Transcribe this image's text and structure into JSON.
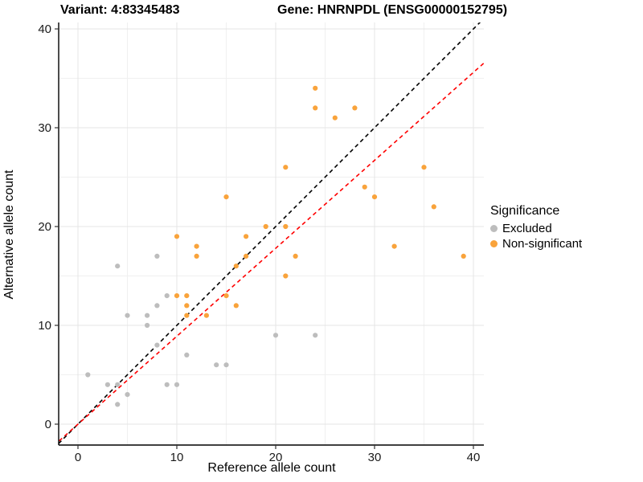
{
  "header": {
    "variant_title": "Variant: 4:83345483",
    "gene_title": "Gene: HNRNPDL (ENSG00000152795)"
  },
  "legend": {
    "title": "Significance",
    "items": [
      {
        "label": "Excluded",
        "color": "#BDBDBD"
      },
      {
        "label": "Non-significant",
        "color": "#F9A33B"
      }
    ]
  },
  "chart_data": {
    "type": "scatter",
    "title": "Variant: 4:83345483  /  Gene: HNRNPDL (ENSG00000152795)",
    "xlabel": "Reference allele count",
    "ylabel": "Alternative allele count",
    "xlim": [
      -2,
      41
    ],
    "ylim": [
      -2,
      41
    ],
    "x_ticks": [
      0,
      10,
      20,
      30,
      40
    ],
    "y_ticks": [
      0,
      10,
      20,
      30,
      40
    ],
    "minor_gridlines": [
      5,
      15,
      25,
      35
    ],
    "grid": true,
    "legend_position": "right",
    "legend_title": "Significance",
    "series": [
      {
        "name": "Excluded",
        "color": "#BDBDBD",
        "points": [
          [
            1,
            5
          ],
          [
            3,
            4
          ],
          [
            4,
            2
          ],
          [
            4,
            4
          ],
          [
            4,
            16
          ],
          [
            5,
            3
          ],
          [
            5,
            11
          ],
          [
            7,
            10
          ],
          [
            7,
            11
          ],
          [
            8,
            8
          ],
          [
            8,
            12
          ],
          [
            8,
            17
          ],
          [
            9,
            4
          ],
          [
            9,
            13
          ],
          [
            10,
            4
          ],
          [
            11,
            7
          ],
          [
            14,
            6
          ],
          [
            15,
            6
          ],
          [
            20,
            9
          ],
          [
            24,
            9
          ]
        ]
      },
      {
        "name": "Non-significant",
        "color": "#F9A33B",
        "points": [
          [
            10,
            13
          ],
          [
            10,
            19
          ],
          [
            11,
            11
          ],
          [
            11,
            12
          ],
          [
            11,
            13
          ],
          [
            12,
            17
          ],
          [
            12,
            18
          ],
          [
            13,
            11
          ],
          [
            15,
            13
          ],
          [
            15,
            23
          ],
          [
            16,
            12
          ],
          [
            16,
            16
          ],
          [
            17,
            17
          ],
          [
            17,
            19
          ],
          [
            19,
            20
          ],
          [
            21,
            15
          ],
          [
            21,
            20
          ],
          [
            21,
            26
          ],
          [
            22,
            17
          ],
          [
            24,
            32
          ],
          [
            24,
            34
          ],
          [
            26,
            31
          ],
          [
            28,
            32
          ],
          [
            29,
            24
          ],
          [
            30,
            23
          ],
          [
            32,
            18
          ],
          [
            35,
            26
          ],
          [
            36,
            22
          ],
          [
            39,
            17
          ]
        ]
      }
    ],
    "reference_lines": [
      {
        "name": "identity-line",
        "color": "#000000",
        "dashed": true,
        "slope": 1,
        "intercept": 0
      },
      {
        "name": "fit-line",
        "color": "#FF0000",
        "dashed": true,
        "slope": 0.89,
        "intercept": 0
      }
    ]
  }
}
